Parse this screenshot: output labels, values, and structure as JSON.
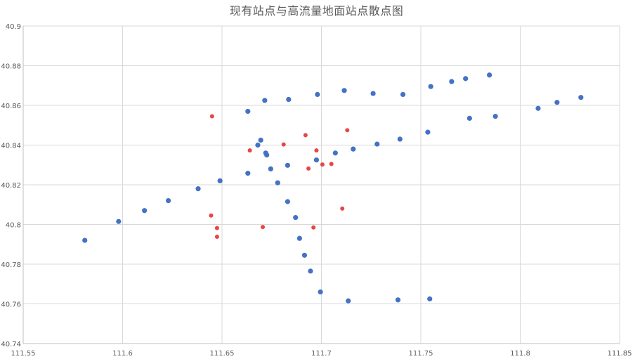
{
  "chart_data": {
    "type": "scatter",
    "title": "现有站点与高流量地面站点散点图",
    "xlabel": "",
    "ylabel": "",
    "xlim": [
      111.55,
      111.85
    ],
    "ylim": [
      40.74,
      40.9
    ],
    "x_ticks": [
      "111.55",
      "111.6",
      "111.65",
      "111.7",
      "111.75",
      "111.8",
      "111.85"
    ],
    "y_ticks": [
      "40.74",
      "40.76",
      "40.78",
      "40.8",
      "40.82",
      "40.84",
      "40.86",
      "40.88",
      "40.9"
    ],
    "grid": true,
    "legend": "none",
    "series": [
      {
        "color": "#4472C4",
        "points": [
          [
            111.581,
            40.792
          ],
          [
            111.598,
            40.8015
          ],
          [
            111.611,
            40.807
          ],
          [
            111.623,
            40.812
          ],
          [
            111.638,
            40.818
          ],
          [
            111.649,
            40.822
          ],
          [
            111.663,
            40.8258
          ],
          [
            111.663,
            40.857
          ],
          [
            111.668,
            40.84
          ],
          [
            111.6695,
            40.8425
          ],
          [
            111.6715,
            40.8625
          ],
          [
            111.672,
            40.836
          ],
          [
            111.6725,
            40.835
          ],
          [
            111.6745,
            40.828
          ],
          [
            111.678,
            40.821
          ],
          [
            111.683,
            40.8298
          ],
          [
            111.683,
            40.8115
          ],
          [
            111.6835,
            40.863
          ],
          [
            111.687,
            40.8035
          ],
          [
            111.689,
            40.793
          ],
          [
            111.6915,
            40.7845
          ],
          [
            111.6945,
            40.7765
          ],
          [
            111.6975,
            40.8325
          ],
          [
            111.698,
            40.8655
          ],
          [
            111.6995,
            40.766
          ],
          [
            111.707,
            40.836
          ],
          [
            111.7115,
            40.8675
          ],
          [
            111.7135,
            40.7615
          ],
          [
            111.716,
            40.838
          ],
          [
            111.726,
            40.866
          ],
          [
            111.728,
            40.8405
          ],
          [
            111.7385,
            40.762
          ],
          [
            111.7395,
            40.843
          ],
          [
            111.741,
            40.8655
          ],
          [
            111.7535,
            40.8465
          ],
          [
            111.7545,
            40.7625
          ],
          [
            111.755,
            40.8695
          ],
          [
            111.7655,
            40.872
          ],
          [
            111.7725,
            40.8735
          ],
          [
            111.7745,
            40.8535
          ],
          [
            111.7845,
            40.8753
          ],
          [
            111.7875,
            40.8545
          ],
          [
            111.809,
            40.8585
          ],
          [
            111.8185,
            40.8615
          ],
          [
            111.8305,
            40.864
          ]
        ]
      },
      {
        "color": "#E84545",
        "points": [
          [
            111.645,
            40.8545
          ],
          [
            111.6445,
            40.8045
          ],
          [
            111.6475,
            40.7982
          ],
          [
            111.6475,
            40.7938
          ],
          [
            111.664,
            40.8373
          ],
          [
            111.6705,
            40.7987
          ],
          [
            111.681,
            40.8403
          ],
          [
            111.692,
            40.845
          ],
          [
            111.6935,
            40.8282
          ],
          [
            111.696,
            40.7985
          ],
          [
            111.6975,
            40.8373
          ],
          [
            111.7005,
            40.8302
          ],
          [
            111.705,
            40.8305
          ],
          [
            111.7105,
            40.808
          ],
          [
            111.713,
            40.8475
          ]
        ]
      }
    ]
  }
}
